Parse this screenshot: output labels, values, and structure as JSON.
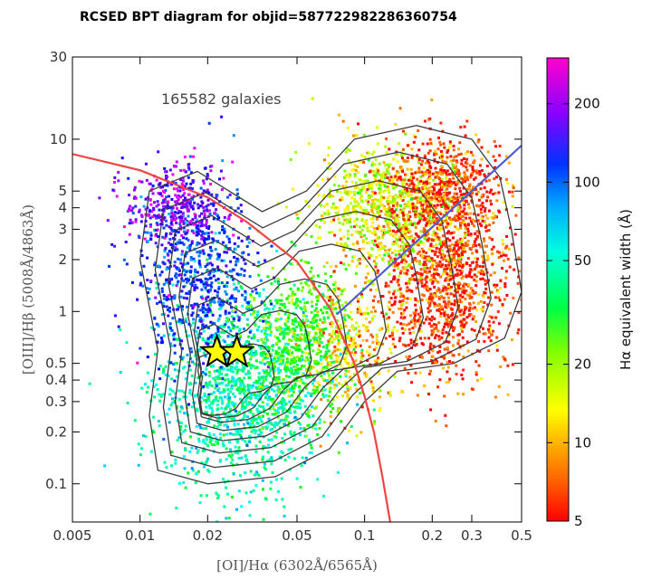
{
  "chart_data": {
    "type": "scatter",
    "title": "RCSED BPT diagram for objid=587722982286360754",
    "xlabel": "[OI]/Hα (6302Å/6565Å)",
    "ylabel": "[OIII]/Hβ (5008Å/4863Å)",
    "x_scale": "log",
    "y_scale": "log",
    "xlim": [
      0.005,
      0.5
    ],
    "ylim": [
      0.06,
      30
    ],
    "x_ticks": [
      {
        "value": 0.005,
        "label": "0.005"
      },
      {
        "value": 0.01,
        "label": "0.01"
      },
      {
        "value": 0.02,
        "label": "0.02"
      },
      {
        "value": 0.05,
        "label": "0.05"
      },
      {
        "value": 0.1,
        "label": "0.1"
      },
      {
        "value": 0.2,
        "label": "0.2"
      },
      {
        "value": 0.3,
        "label": "0.3"
      },
      {
        "value": 0.5,
        "label": "0.5"
      }
    ],
    "y_ticks": [
      {
        "value": 0.1,
        "label": "0.1"
      },
      {
        "value": 0.2,
        "label": "0.2"
      },
      {
        "value": 0.3,
        "label": "0.3"
      },
      {
        "value": 0.4,
        "label": "0.4"
      },
      {
        "value": 0.5,
        "label": "0.5"
      },
      {
        "value": 1,
        "label": "1"
      },
      {
        "value": 2,
        "label": "2"
      },
      {
        "value": 3,
        "label": "3"
      },
      {
        "value": 4,
        "label": "4"
      },
      {
        "value": 5,
        "label": "5"
      },
      {
        "value": 10,
        "label": "10"
      },
      {
        "value": 30,
        "label": "30"
      }
    ],
    "annotation": "165582 galaxies",
    "marked_objects": [
      {
        "x": 0.022,
        "y": 0.58
      },
      {
        "x": 0.027,
        "y": 0.58
      }
    ],
    "demarcation_lines": [
      {
        "color": "#ef4444",
        "points": [
          [
            0.005,
            8.2
          ],
          [
            0.01,
            6.6
          ],
          [
            0.02,
            4.6
          ],
          [
            0.03,
            3.3
          ],
          [
            0.05,
            1.95
          ],
          [
            0.07,
            1.05
          ],
          [
            0.09,
            0.5
          ],
          [
            0.1,
            0.32
          ],
          [
            0.11,
            0.2
          ],
          [
            0.12,
            0.11
          ],
          [
            0.13,
            0.06
          ]
        ]
      },
      {
        "color": "#4f5bd5",
        "points": [
          [
            0.075,
            0.96
          ],
          [
            0.5,
            9.2
          ]
        ]
      }
    ],
    "colorbar": {
      "label": "Hα equivalent width (Å)",
      "scale": "log",
      "range": [
        5,
        300
      ],
      "ticks": [
        {
          "value": 5,
          "label": "5"
        },
        {
          "value": 10,
          "label": "10"
        },
        {
          "value": 20,
          "label": "20"
        },
        {
          "value": 50,
          "label": "50"
        },
        {
          "value": 100,
          "label": "100"
        },
        {
          "value": 200,
          "label": "200"
        }
      ]
    },
    "grid": false,
    "legend": "none"
  }
}
